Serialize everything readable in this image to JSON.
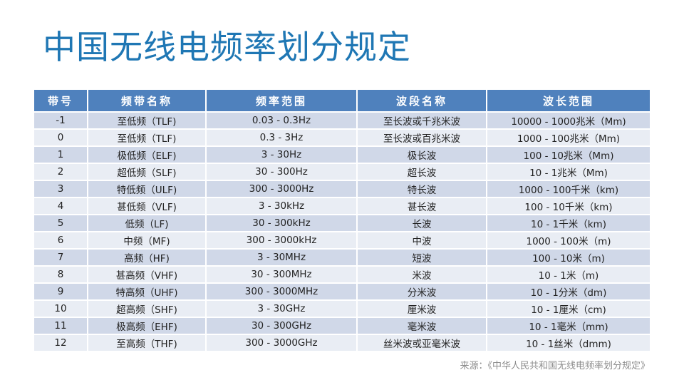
{
  "title": "中国无线电频率划分规定",
  "table": {
    "headers": [
      "带号",
      "频带名称",
      "频率范围",
      "波段名称",
      "波长范围"
    ],
    "rows": [
      [
        "-1",
        "至低频（TLF)",
        "0.03 - 0.3Hz",
        "至长波或千兆米波",
        "10000 - 1000兆米（Mm)"
      ],
      [
        "0",
        "至低频（TLF)",
        "0.3 - 3Hz",
        "至长波或百兆米波",
        "1000 - 100兆米（Mm)"
      ],
      [
        "1",
        "极低频（ELF)",
        "3 - 30Hz",
        "极长波",
        "100 - 10兆米（Mm)"
      ],
      [
        "2",
        "超低频（SLF)",
        "30 - 300Hz",
        "超长波",
        "10 - 1兆米（Mm)"
      ],
      [
        "3",
        "特低频（ULF)",
        "300 - 3000Hz",
        "特长波",
        "1000 - 100千米（km)"
      ],
      [
        "4",
        "甚低频（VLF)",
        "3 - 30kHz",
        "甚长波",
        "100 - 10千米（km)"
      ],
      [
        "5",
        "低频（LF)",
        "30 - 300kHz",
        "长波",
        "10 - 1千米（km)"
      ],
      [
        "6",
        "中频（MF)",
        "300 - 3000kHz",
        "中波",
        "1000 - 100米（m)"
      ],
      [
        "7",
        "高频（HF)",
        "3 - 30MHz",
        "短波",
        "100 - 10米（m)"
      ],
      [
        "8",
        "甚高频（VHF)",
        "30 - 300MHz",
        "米波",
        "10 - 1米（m)"
      ],
      [
        "9",
        "特高频（UHF)",
        "300 - 3000MHz",
        "分米波",
        "10 - 1分米（dm)"
      ],
      [
        "10",
        "超高频（SHF)",
        "3 - 30GHz",
        "厘米波",
        "10 - 1厘米（cm)"
      ],
      [
        "11",
        "极高频（EHF)",
        "30 - 300GHz",
        "毫米波",
        "10 - 1毫米（mm)"
      ],
      [
        "12",
        "至高频（THF)",
        "300 - 3000GHz",
        "丝米波或亚毫米波",
        "10 - 1丝米（dmm)"
      ]
    ]
  },
  "source": "来源：《中华人民共和国无线电频率划分规定》",
  "colors": {
    "title": "#1f77b4",
    "header_bg": "#4f81bd",
    "row_odd": "#d0d8e8",
    "row_even": "#e9edf4"
  }
}
